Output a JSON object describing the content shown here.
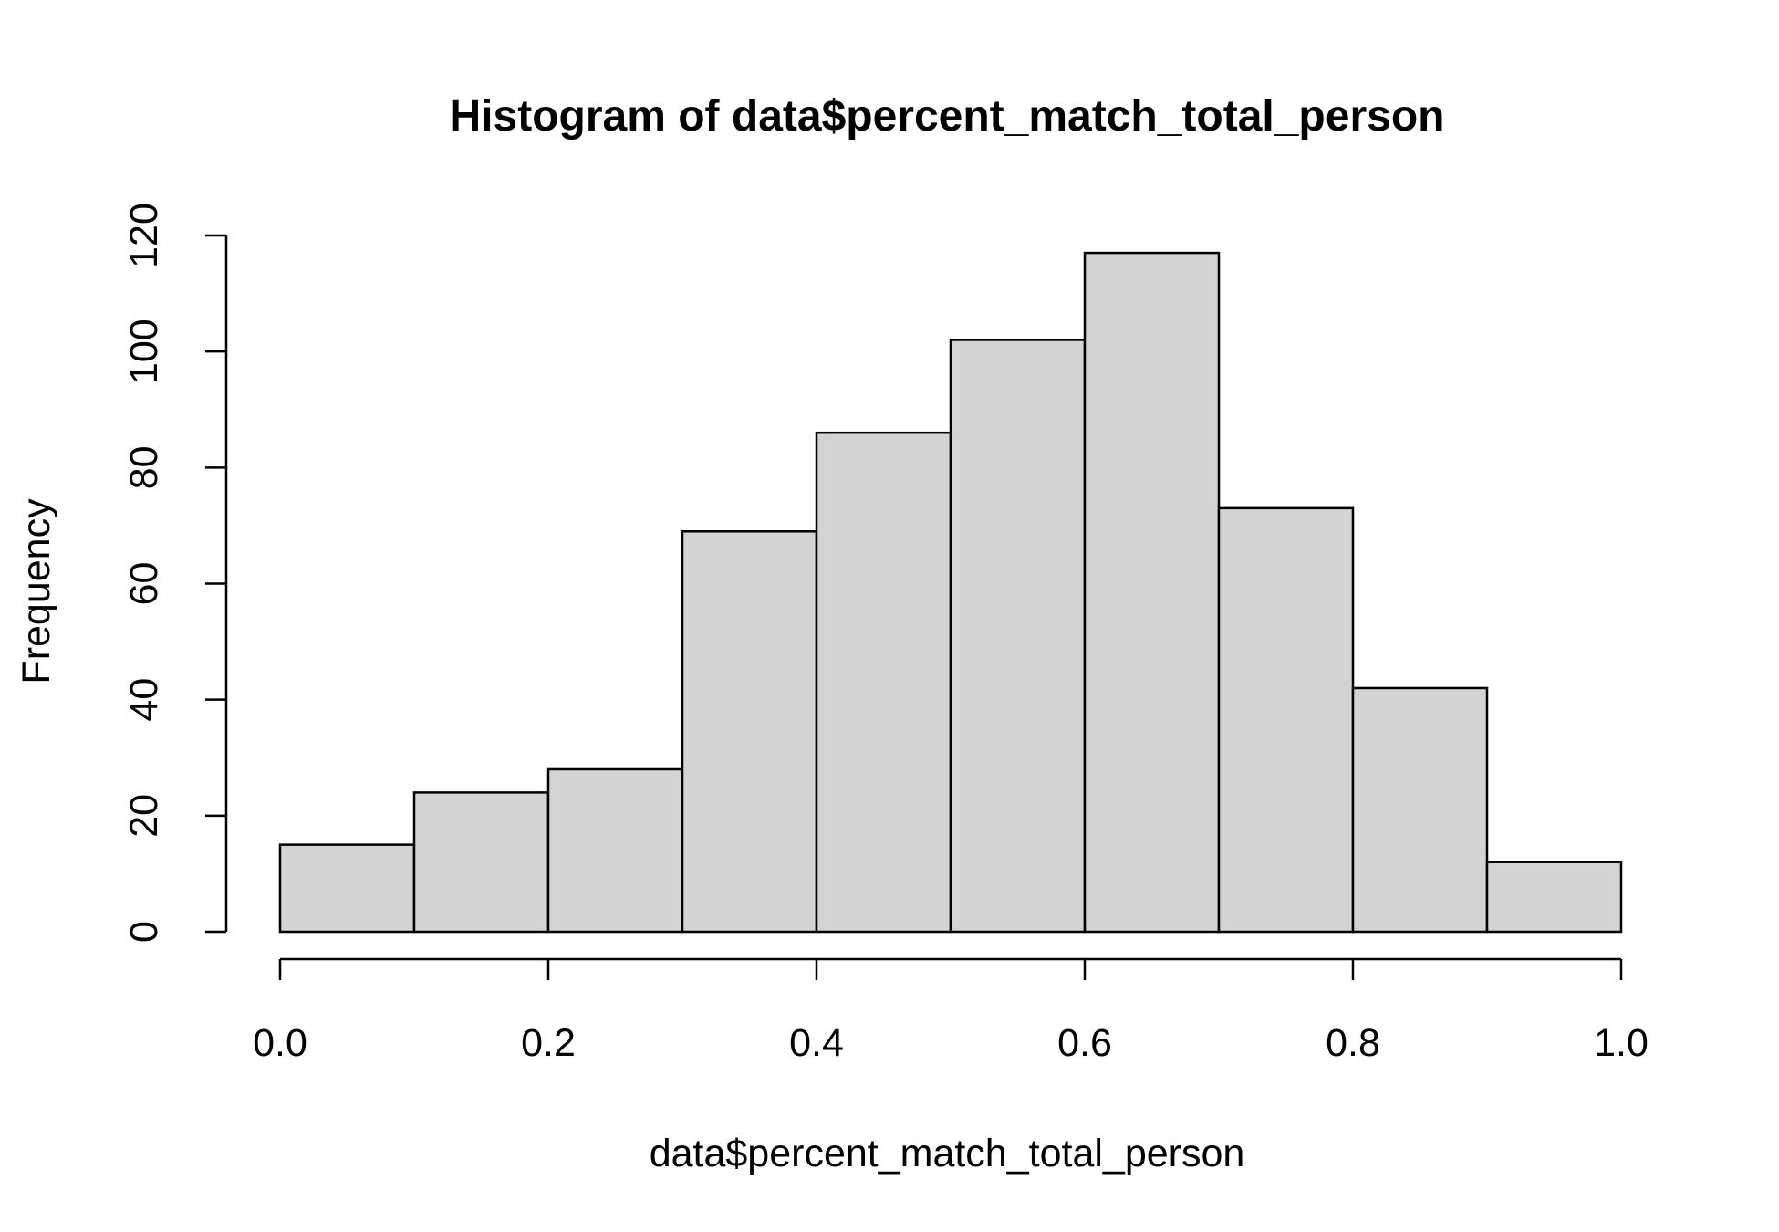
{
  "chart_data": {
    "type": "bar",
    "subtype": "histogram",
    "title": "Histogram of data$percent_match_total_person",
    "xlabel": "data$percent_match_total_person",
    "ylabel": "Frequency",
    "bins": [
      {
        "start": 0.0,
        "end": 0.1,
        "count": 15
      },
      {
        "start": 0.1,
        "end": 0.2,
        "count": 24
      },
      {
        "start": 0.2,
        "end": 0.3,
        "count": 28
      },
      {
        "start": 0.3,
        "end": 0.4,
        "count": 69
      },
      {
        "start": 0.4,
        "end": 0.5,
        "count": 86
      },
      {
        "start": 0.5,
        "end": 0.6,
        "count": 102
      },
      {
        "start": 0.6,
        "end": 0.7,
        "count": 117
      },
      {
        "start": 0.7,
        "end": 0.8,
        "count": 73
      },
      {
        "start": 0.8,
        "end": 0.9,
        "count": 42
      },
      {
        "start": 0.9,
        "end": 1.0,
        "count": 12
      }
    ],
    "x_ticks": [
      "0.0",
      "0.2",
      "0.4",
      "0.6",
      "0.8",
      "1.0"
    ],
    "x_tick_values": [
      0.0,
      0.2,
      0.4,
      0.6,
      0.8,
      1.0
    ],
    "y_ticks": [
      "0",
      "20",
      "40",
      "60",
      "80",
      "100",
      "120"
    ],
    "y_tick_values": [
      0,
      20,
      40,
      60,
      80,
      100,
      120
    ],
    "xlim": [
      0.0,
      1.0
    ],
    "ylim": [
      0,
      120
    ],
    "grid": false,
    "legend": "none",
    "colors": {
      "bar_fill": "#d3d3d3",
      "bar_stroke": "#000000"
    }
  }
}
